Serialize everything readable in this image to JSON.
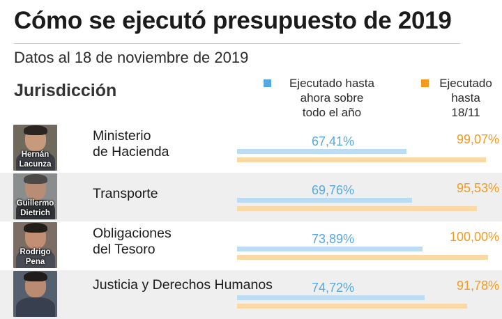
{
  "title": "Cómo se ejecutó presupuesto de 2019",
  "subtitle": "Datos al 18 de noviembre de 2019",
  "column_header": "Jurisdicción",
  "colors": {
    "annual": "#53a9e0",
    "to_date": "#f39a1f"
  },
  "legend": {
    "annual": "Ejecutado hasta\nahora sobre\ntodo el año",
    "to_date": "Ejecutado\nhasta\n18/11"
  },
  "chart_data": {
    "type": "bar",
    "orientation": "horizontal",
    "categories": [
      "Ministerio de Hacienda",
      "Transporte",
      "Obligaciones del Tesoro",
      "Justicia y Derechos Humanos"
    ],
    "series": [
      {
        "name": "Ejecutado hasta ahora sobre todo el año",
        "values": [
          67.41,
          69.76,
          73.89,
          74.72
        ]
      },
      {
        "name": "Ejecutado hasta 18/11",
        "values": [
          99.07,
          95.53,
          100.0,
          91.78
        ]
      }
    ],
    "xlim": [
      0,
      100
    ],
    "unit": "%"
  },
  "rows": [
    {
      "label": "Ministerio\nde Hacienda",
      "person": "Hernán\nLacunza",
      "annual": "67,41%",
      "to_date": "99,07%",
      "annual_value": 67.41,
      "to_date_value": 99.07
    },
    {
      "label": "Transporte",
      "person": "Guillermo\nDietrich",
      "annual": "69,76%",
      "to_date": "95,53%",
      "annual_value": 69.76,
      "to_date_value": 95.53
    },
    {
      "label": "Obligaciones\ndel Tesoro",
      "person": "Rodrigo\nPena",
      "annual": "73,89%",
      "to_date": "100,00%",
      "annual_value": 73.89,
      "to_date_value": 100.0
    },
    {
      "label": "Justicia y Derechos Humanos",
      "person": "",
      "annual": "74,72%",
      "to_date": "91,78%",
      "annual_value": 74.72,
      "to_date_value": 91.78
    }
  ]
}
